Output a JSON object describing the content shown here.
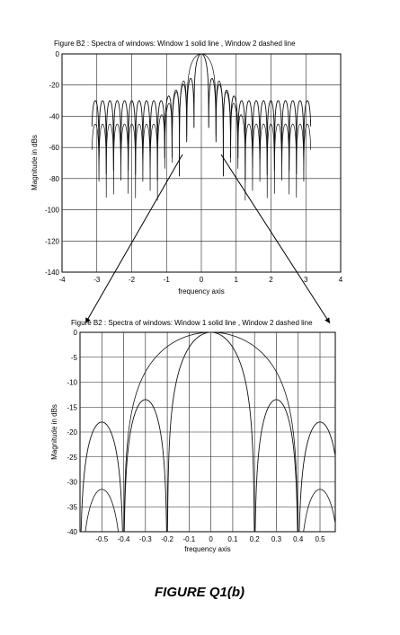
{
  "caption": "FIGURE Q1(b)",
  "chart_data": [
    {
      "type": "line",
      "title": "Figure B2 :    Spectra of windows:  Window 1 solid line   , Window 2 dashed line",
      "xlabel": "frequency axis",
      "ylabel": "Magnitude in dBs",
      "xlim": [
        -4,
        4
      ],
      "ylim": [
        -140,
        0
      ],
      "xticks": [
        -4,
        -3,
        -2,
        -1,
        0,
        1,
        2,
        3,
        4
      ],
      "yticks": [
        0,
        -20,
        -40,
        -60,
        -80,
        -100,
        -120,
        -140
      ],
      "grid": true,
      "series": [
        {
          "style": "solid",
          "nulls_every": 0.21,
          "peak_db": 0,
          "side_lobe_db": -30,
          "x_range": [
            -3.14,
            3.14
          ]
        },
        {
          "style": "dashed",
          "nulls_every": 0.21,
          "peak_db": 0,
          "side_lobe_db": -45,
          "x_range": [
            -3.14,
            3.14
          ]
        }
      ]
    },
    {
      "type": "line",
      "title": "Figure B2 :    Spectra of windows:  Window 1 solid line   , Window 2 dashed line",
      "xlabel": "frequency axis",
      "ylabel": "Magnitude in dBs",
      "xlim": [
        -0.6,
        0.57
      ],
      "ylim": [
        -40,
        0
      ],
      "xticks": [
        -0.5,
        -0.4,
        -0.3,
        -0.2,
        -0.1,
        0,
        0.1,
        0.2,
        0.3,
        0.4,
        0.5
      ],
      "xtick_labels": [
        "-0.5",
        "-0.4",
        "-0.3",
        "-0.2",
        "-0.1",
        "0",
        "0.1",
        "0.2",
        "0.3",
        "0.4",
        "0.5"
      ],
      "yticks": [
        0,
        -5,
        -10,
        -15,
        -20,
        -25,
        -30,
        -35,
        -40
      ],
      "grid": true,
      "series": [
        {
          "style": "solid",
          "main_lobe_null": 0.2,
          "side_lobe_peaks_db": [
            -13.5,
            -18
          ]
        },
        {
          "style": "dashed",
          "main_lobe_null": 0.4,
          "side_lobe_peaks_db": [
            -31.5
          ]
        }
      ]
    }
  ]
}
